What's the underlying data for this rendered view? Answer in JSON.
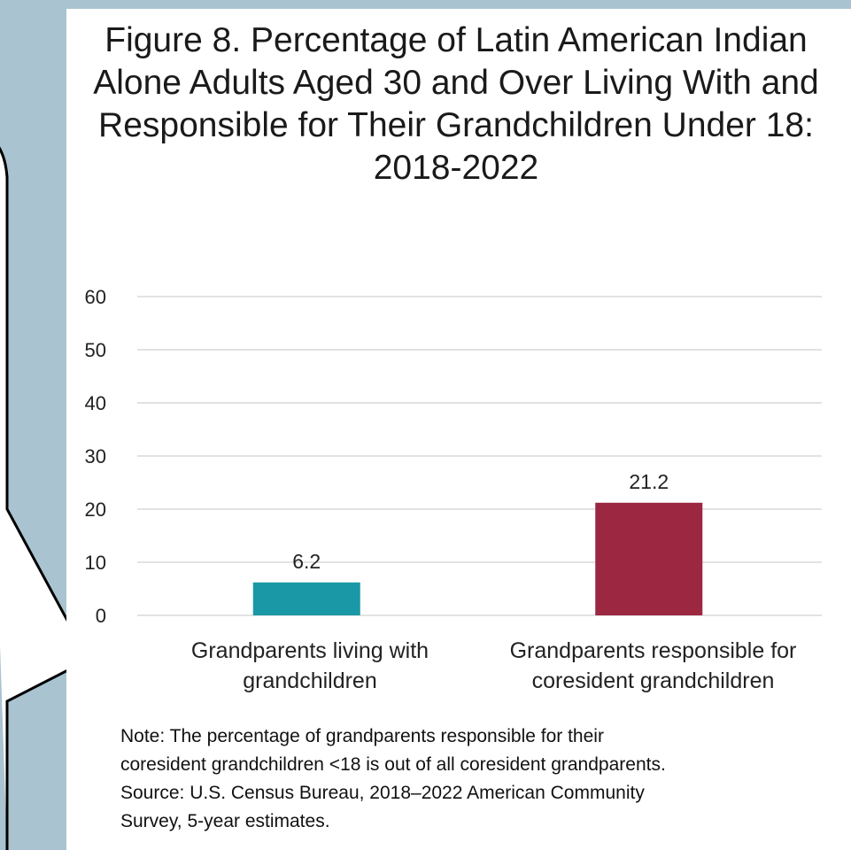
{
  "chart_data": {
    "type": "bar",
    "title": "Figure 8. Percentage of Latin American Indian Alone Adults Aged 30 and Over Living With and Responsible for Their Grandchildren Under 18: 2018-2022",
    "categories": [
      "Grandparents living with grandchildren",
      "Grandparents responsible for coresident grandchildren"
    ],
    "values": [
      6.2,
      21.2
    ],
    "data_labels": [
      "6.2",
      "21.2"
    ],
    "colors": [
      "#1b98a6",
      "#9c2741"
    ],
    "ylim": [
      0,
      60
    ],
    "yticks": [
      0,
      10,
      20,
      30,
      40,
      50,
      60
    ],
    "xlabel": "",
    "ylabel": "",
    "grid": true,
    "legend": "none"
  },
  "note": {
    "line1": "Note: The percentage of grandparents responsible for their",
    "line2": "coresident grandchildren <18 is out of all coresident grandparents.",
    "line3": "Source: U.S. Census Bureau, 2018–2022 American Community",
    "line4": "Survey, 5-year estimates."
  },
  "colors": {
    "background": "#a9c3d1",
    "panel": "#ffffff",
    "gridline": "#d9d9d9"
  }
}
